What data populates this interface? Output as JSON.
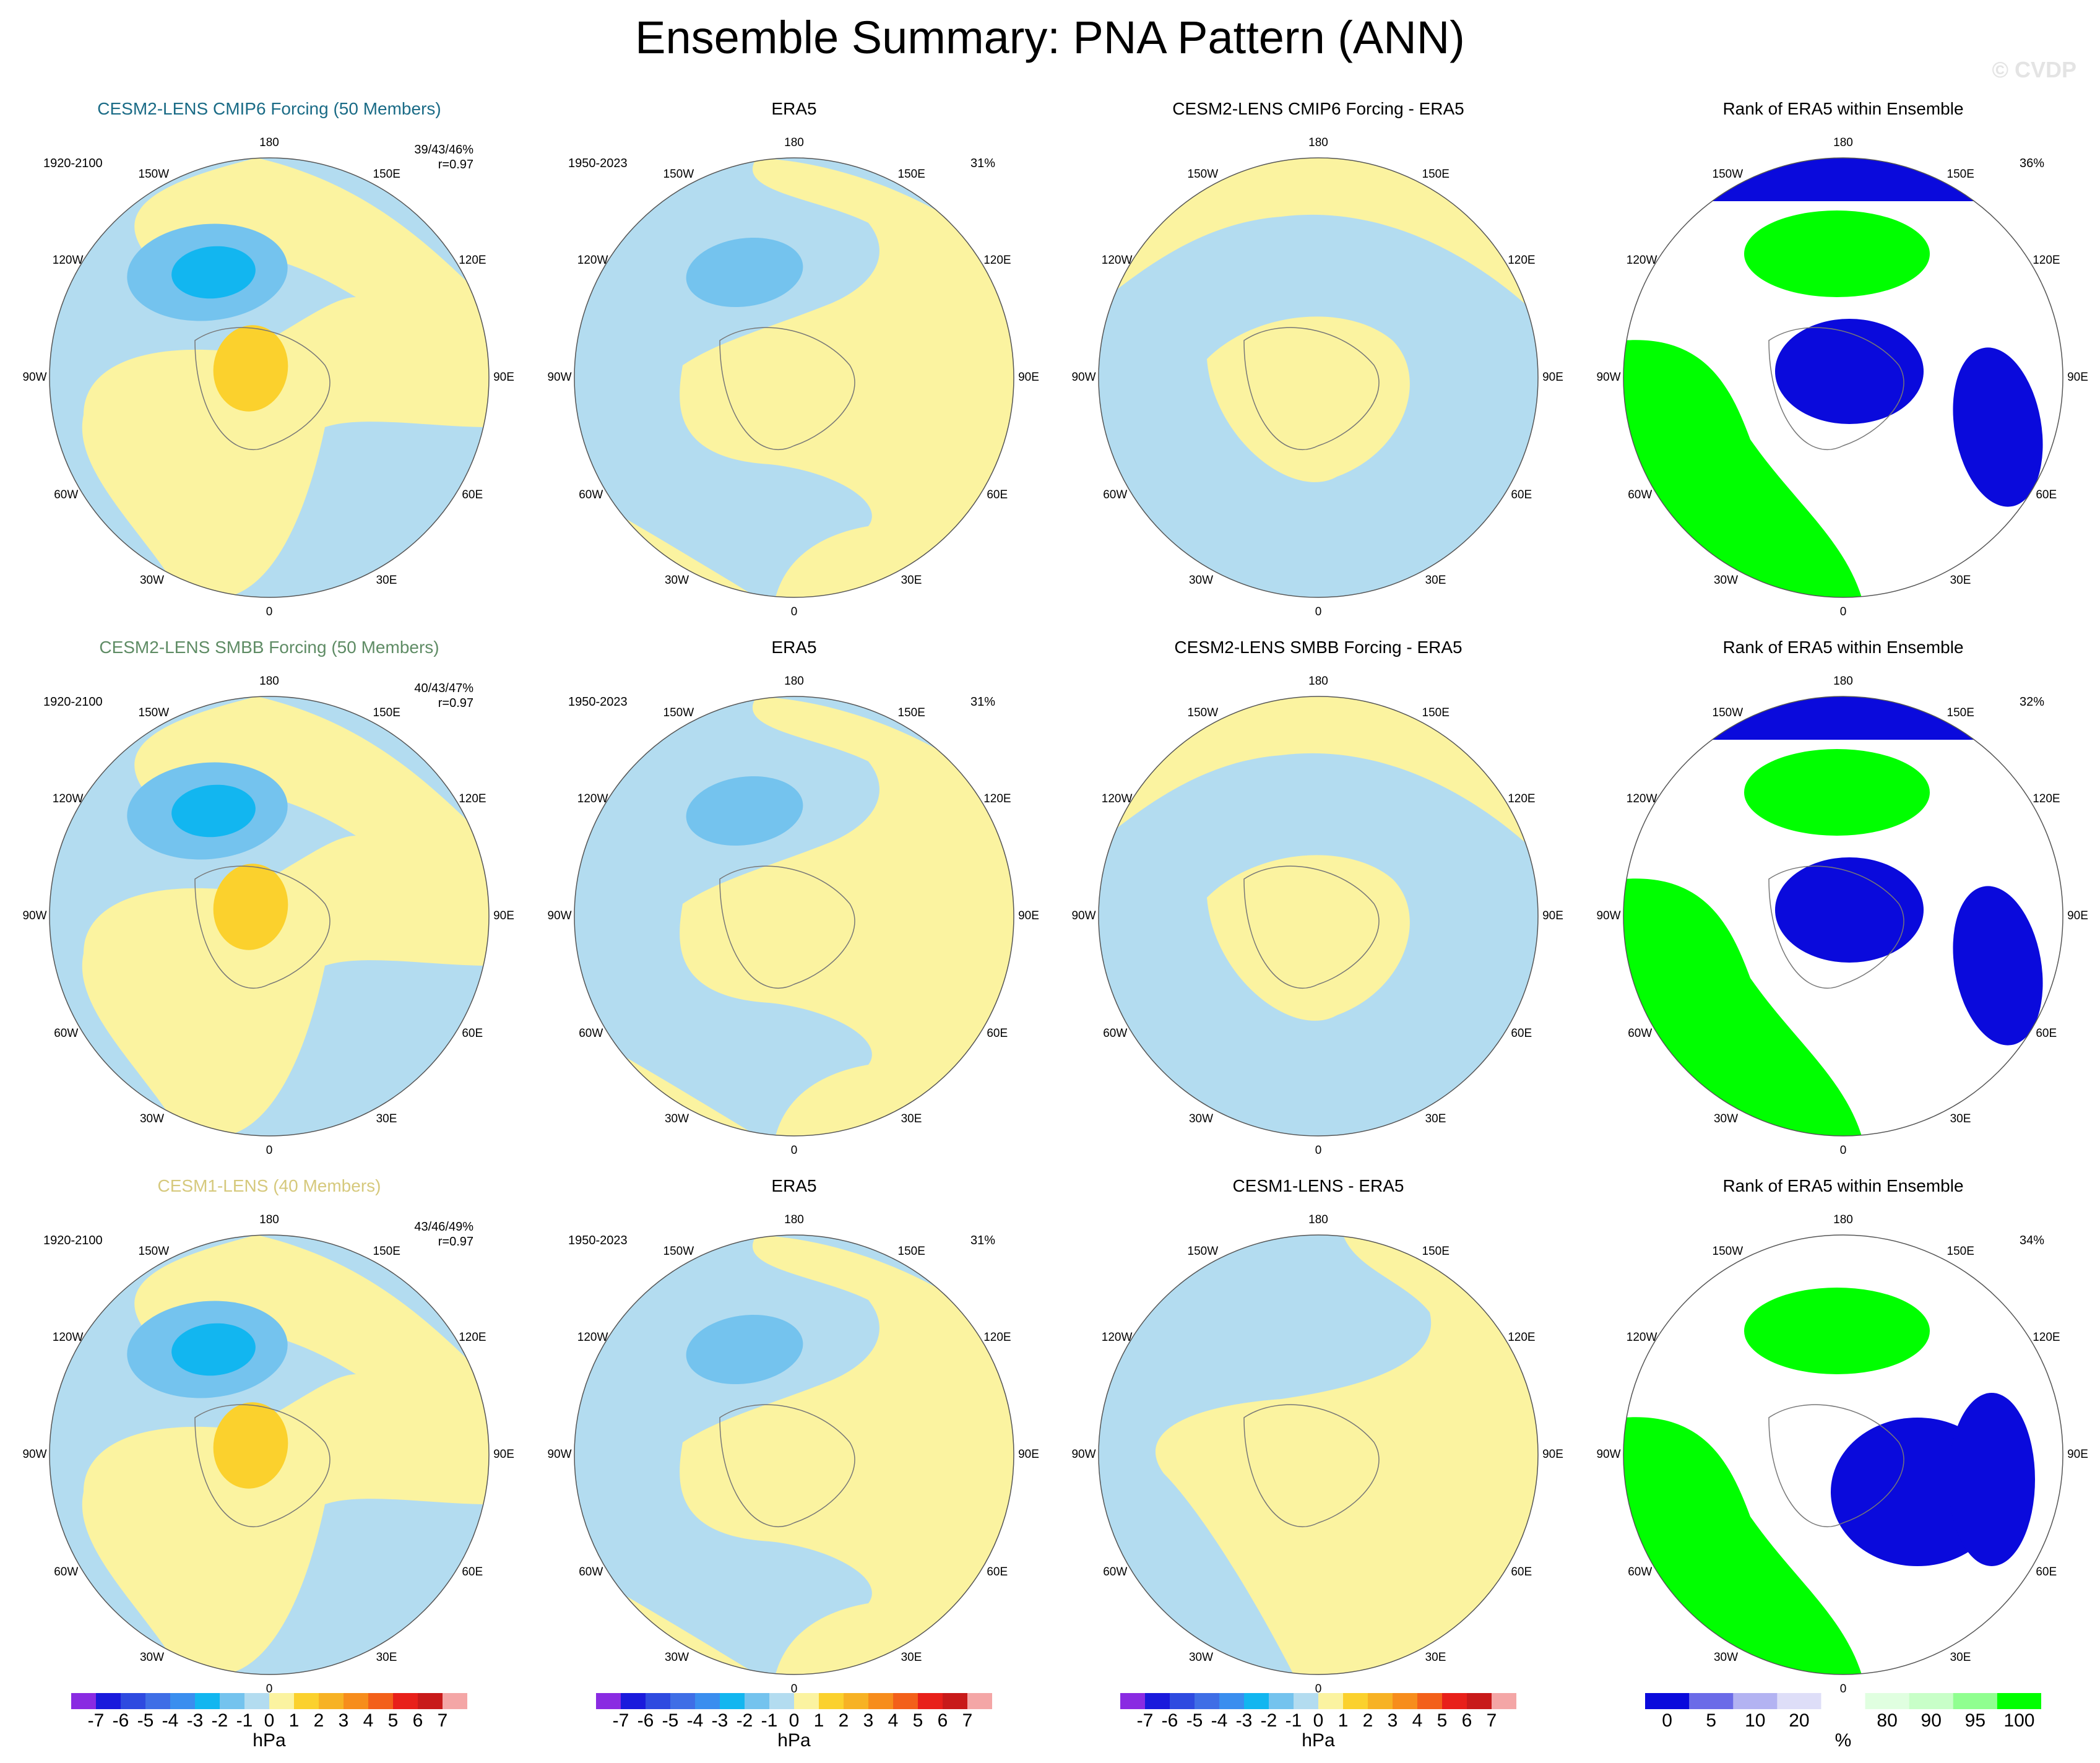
{
  "figure": {
    "title": "Ensemble Summary: PNA Pattern (ANN)",
    "watermark": "© CVDP"
  },
  "colors": {
    "yellow": "#fbf3a0",
    "lightblue": "#b3dcf0",
    "midblue": "#74c3ee",
    "brightblue": "#12b6f0",
    "orange": "#fbd12d",
    "green": "#00ff00",
    "darkblue": "#0a0adc",
    "row1_title": "#1a6b86",
    "row2_title": "#5f8c65",
    "row3_title": "#d6c97d"
  },
  "longitude_labels": [
    "180",
    "150E",
    "120E",
    "90E",
    "60E",
    "30E",
    "0",
    "30W",
    "60W",
    "90W",
    "120W",
    "150W"
  ],
  "rows": [
    {
      "model_title": "CESM2-LENS CMIP6 Forcing (50 Members)",
      "model_period": "1920-2100",
      "stats": "39/43/46%",
      "corr": "r=0.97",
      "era_title": "ERA5",
      "era_period": "1950-2023",
      "era_pct": "31%",
      "diff_title": "CESM2-LENS CMIP6 Forcing - ERA5",
      "rank_title": "Rank of ERA5 within Ensemble",
      "rank_pct": "36%"
    },
    {
      "model_title": "CESM2-LENS SMBB Forcing (50 Members)",
      "model_period": "1920-2100",
      "stats": "40/43/47%",
      "corr": "r=0.97",
      "era_title": "ERA5",
      "era_period": "1950-2023",
      "era_pct": "31%",
      "diff_title": "CESM2-LENS SMBB Forcing - ERA5",
      "rank_title": "Rank of ERA5 within Ensemble",
      "rank_pct": "32%"
    },
    {
      "model_title": "CESM1-LENS (40 Members)",
      "model_period": "1920-2100",
      "stats": "43/46/49%",
      "corr": "r=0.97",
      "era_title": "ERA5",
      "era_period": "1950-2023",
      "era_pct": "31%",
      "diff_title": "CESM1-LENS - ERA5",
      "rank_title": "Rank of ERA5 within Ensemble",
      "rank_pct": "34%"
    }
  ],
  "colorbar_hpa": {
    "colors": [
      "#8a2be2",
      "#1a1adc",
      "#2e4ae0",
      "#3f6ee6",
      "#3a8eef",
      "#12b6f0",
      "#74c3ee",
      "#b3dcf0",
      "#fbf3a0",
      "#fbd12d",
      "#f7b224",
      "#f78d1c",
      "#f3601a",
      "#e8201a",
      "#c81a1a",
      "#f4a6a6"
    ],
    "ticks": [
      "-7",
      "-6",
      "-5",
      "-4",
      "-3",
      "-2",
      "-1",
      "0",
      "1",
      "2",
      "3",
      "4",
      "5",
      "6",
      "7"
    ],
    "units": "hPa"
  },
  "colorbar_rank": {
    "colors": [
      "#0a0adc",
      "#6b6be8",
      "#b3b3f2",
      "#dedef8",
      "#ffffff",
      "#e0ffe0",
      "#c8ffc8",
      "#90ff90",
      "#00ff00"
    ],
    "ticks": [
      "0",
      "5",
      "10",
      "20",
      "80",
      "90",
      "95",
      "100"
    ],
    "units": "%"
  }
}
